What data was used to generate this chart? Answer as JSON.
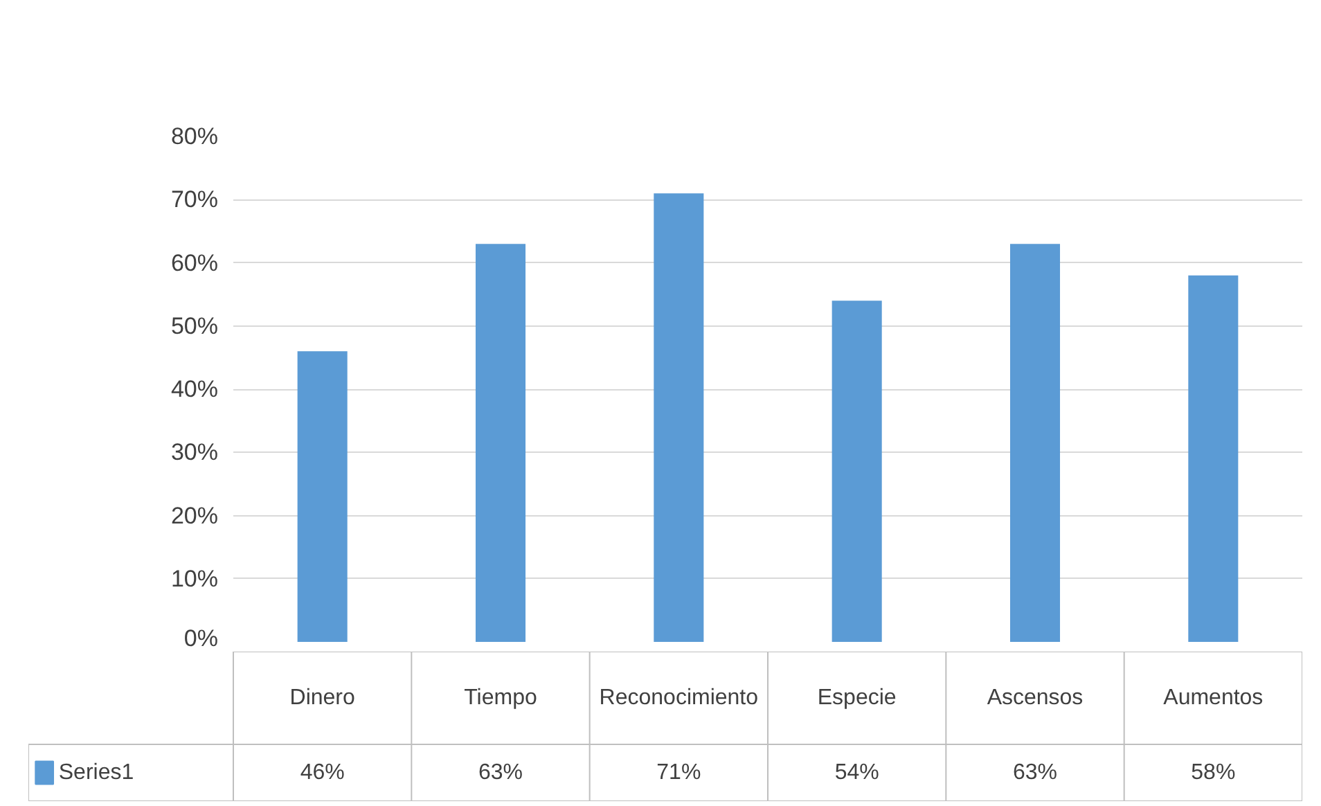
{
  "chart_data": {
    "type": "bar",
    "categories": [
      "Dinero",
      "Tiempo",
      "Reconocimiento",
      "Especie",
      "Ascensos",
      "Aumentos"
    ],
    "series": [
      {
        "name": "Series1",
        "color": "#5b9bd5",
        "values": [
          46,
          63,
          71,
          54,
          63,
          58
        ],
        "value_labels": [
          "46%",
          "63%",
          "71%",
          "54%",
          "63%",
          "58%"
        ]
      }
    ],
    "ylim": [
      0,
      80
    ],
    "yticks": [
      {
        "value": 0,
        "label": "0%"
      },
      {
        "value": 10,
        "label": "10%"
      },
      {
        "value": 20,
        "label": "20%"
      },
      {
        "value": 30,
        "label": "30%"
      },
      {
        "value": 40,
        "label": "40%"
      },
      {
        "value": 50,
        "label": "50%"
      },
      {
        "value": 60,
        "label": "60%"
      },
      {
        "value": 70,
        "label": "70%"
      },
      {
        "value": 80,
        "label": "80%"
      }
    ],
    "grid": "y",
    "legend": "bottom"
  }
}
